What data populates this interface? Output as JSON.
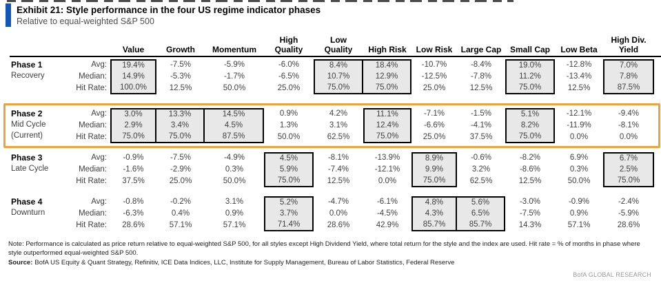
{
  "exhibit": {
    "title": "Exhibit 21: Style performance in the four US regime indicator phases",
    "subtitle": "Relative to equal-weighted S&P 500"
  },
  "table": {
    "columns": [
      "Value",
      "Growth",
      "Momentum",
      "High\nQuality",
      "Low\nQuality",
      "High Risk",
      "Low Risk",
      "Large Cap",
      "Small Cap",
      "Low Beta",
      "High Div.\nYield"
    ],
    "row_labels": [
      "Avg:",
      "Median:",
      "Hit Rate:"
    ],
    "phases": [
      {
        "name": "Phase 1",
        "sub": [
          "Recovery"
        ],
        "current": false,
        "highlight_columns": [
          0,
          4,
          5,
          8,
          10
        ],
        "rows": [
          [
            "19.4%",
            "-7.5%",
            "-5.9%",
            "-6.0%",
            "8.4%",
            "18.4%",
            "-10.7%",
            "-8.4%",
            "19.0%",
            "-12.8%",
            "7.0%"
          ],
          [
            "14.9%",
            "-5.3%",
            "-1.7%",
            "-6.5%",
            "10.7%",
            "12.9%",
            "-12.5%",
            "-7.8%",
            "11.2%",
            "-13.4%",
            "7.8%"
          ],
          [
            "100.0%",
            "12.5%",
            "50.0%",
            "25.0%",
            "75.0%",
            "75.0%",
            "25.0%",
            "12.5%",
            "75.0%",
            "12.5%",
            "87.5%"
          ]
        ]
      },
      {
        "name": "Phase 2",
        "sub": [
          "Mid Cycle",
          "(Current)"
        ],
        "current": true,
        "highlight_columns": [
          0,
          1,
          2,
          5,
          8
        ],
        "rows": [
          [
            "3.0%",
            "13.3%",
            "14.5%",
            "0.9%",
            "4.2%",
            "11.1%",
            "-7.1%",
            "-1.5%",
            "5.1%",
            "-12.1%",
            "-9.4%"
          ],
          [
            "2.9%",
            "3.4%",
            "4.5%",
            "1.3%",
            "3.1%",
            "12.4%",
            "-6.6%",
            "-4.1%",
            "8.2%",
            "-11.9%",
            "-8.1%"
          ],
          [
            "75.0%",
            "75.0%",
            "87.5%",
            "50.0%",
            "62.5%",
            "75.0%",
            "25.0%",
            "37.5%",
            "75.0%",
            "0.0%",
            "0.0%"
          ]
        ]
      },
      {
        "name": "Phase 3",
        "sub": [
          "Late Cycle"
        ],
        "current": false,
        "highlight_columns": [
          3,
          6,
          10
        ],
        "rows": [
          [
            "-0.9%",
            "-7.5%",
            "-4.9%",
            "4.5%",
            "-8.1%",
            "-13.9%",
            "8.9%",
            "-0.6%",
            "-8.2%",
            "6.9%",
            "6.7%"
          ],
          [
            "-1.6%",
            "-2.9%",
            "0.3%",
            "5.9%",
            "-7.4%",
            "-12.1%",
            "9.9%",
            "3.2%",
            "-8.6%",
            "0.3%",
            "2.5%"
          ],
          [
            "37.5%",
            "25.0%",
            "50.0%",
            "75.0%",
            "12.5%",
            "0.0%",
            "75.0%",
            "62.5%",
            "12.5%",
            "50.0%",
            "75.0%"
          ]
        ]
      },
      {
        "name": "Phase 4",
        "sub": [
          "Downturn"
        ],
        "current": false,
        "highlight_columns": [
          3,
          6,
          7
        ],
        "rows": [
          [
            "-0.8%",
            "-0.2%",
            "3.1%",
            "5.2%",
            "-4.7%",
            "-6.1%",
            "4.8%",
            "5.6%",
            "-3.0%",
            "-0.9%",
            "-2.4%"
          ],
          [
            "-6.3%",
            "0.4%",
            "0.9%",
            "3.7%",
            "0.0%",
            "-4.5%",
            "4.3%",
            "6.5%",
            "-7.5%",
            "0.9%",
            "-5.9%"
          ],
          [
            "28.6%",
            "57.1%",
            "57.1%",
            "71.4%",
            "28.6%",
            "42.9%",
            "85.7%",
            "85.7%",
            "14.3%",
            "57.1%",
            "28.6%"
          ]
        ]
      }
    ]
  },
  "footer": {
    "note": "Note: Performance is calculated as price return relative to equal-weighted S&P 500, for all styles except High Dividend Yield, where total return for the style and the index are used. Hit rate = % of months in phase where style outperformed equal-weighted S&P 500.",
    "source_label": "Source:",
    "source_text": "BofA US Equity & Quant Strategy, Refinitiv, ICE Data Indices, LLC, Institute for Supply Management, Bureau of Labor Statistics, Federal Reserve",
    "brand": "BofA GLOBAL RESEARCH"
  },
  "colors": {
    "accent_blue": "#1257B8",
    "highlight_fill": "#E8E8E8",
    "highlight_border": "#000000",
    "current_phase_border": "#ECA23D"
  }
}
